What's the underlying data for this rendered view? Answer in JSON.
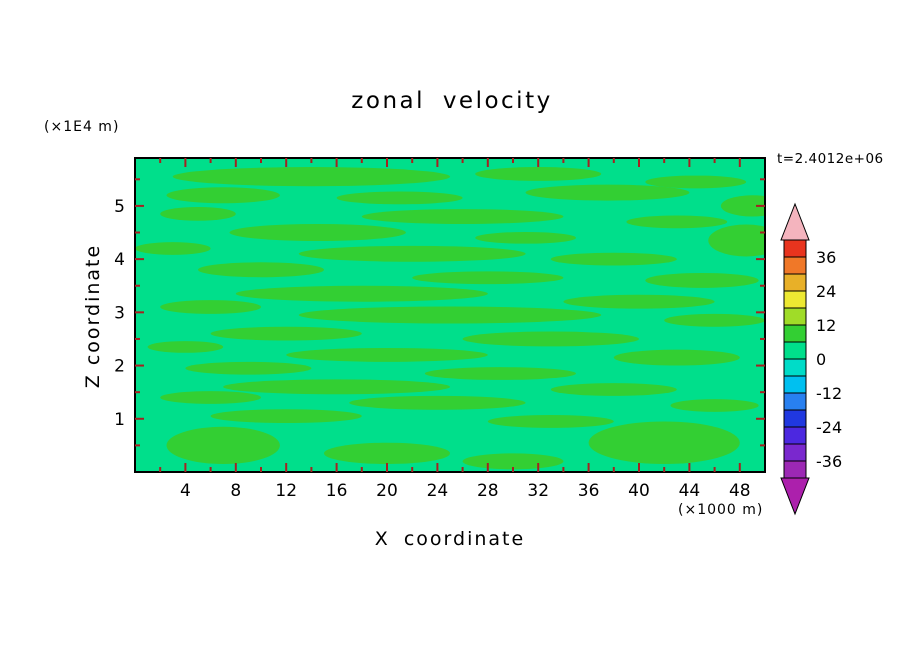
{
  "title": "zonal velocity",
  "annotations": {
    "time": "t=2.4012e+06",
    "y_axis_units": "(×1E4 m)",
    "x_axis_units": "(×1000 m)"
  },
  "chart_data": {
    "type": "filled_contour",
    "title": "zonal velocity",
    "xlabel": "X coordinate",
    "ylabel": "Z coordinate",
    "x_units": "(×1000 m)",
    "y_units": "(×1E4 m)",
    "time_annotation": "t=2.4012e+06",
    "xlim": [
      0,
      50
    ],
    "ylim": [
      0,
      5.9
    ],
    "x_major_ticks": [
      4,
      8,
      12,
      16,
      20,
      24,
      28,
      32,
      36,
      40,
      44,
      48
    ],
    "x_minor_step": 2,
    "y_major_ticks": [
      1,
      2,
      3,
      4,
      5
    ],
    "y_minor_step": 0.5,
    "contour_interval": 6,
    "grid": false,
    "frame_color": "#000000",
    "tick_color": "#a62121",
    "colorbar": {
      "position": "right",
      "labels": [
        "36",
        "24",
        "12",
        "0",
        "-12",
        "-24",
        "-36"
      ],
      "bands_top_to_bottom": [
        {
          "range": [
            36,
            42
          ],
          "color": "#e8341e"
        },
        {
          "range": [
            30,
            36
          ],
          "color": "#f07828"
        },
        {
          "range": [
            24,
            30
          ],
          "color": "#e8b028"
        },
        {
          "range": [
            18,
            24
          ],
          "color": "#ede832"
        },
        {
          "range": [
            12,
            18
          ],
          "color": "#a0dc28"
        },
        {
          "range": [
            6,
            12
          ],
          "color": "#33cf33"
        },
        {
          "range": [
            0,
            6
          ],
          "color": "#00df8b"
        },
        {
          "range": [
            -6,
            0
          ],
          "color": "#00dcc8"
        },
        {
          "range": [
            -12,
            -6
          ],
          "color": "#00c0f0"
        },
        {
          "range": [
            -18,
            -12
          ],
          "color": "#2880f0"
        },
        {
          "range": [
            -24,
            -18
          ],
          "color": "#2038e0"
        },
        {
          "range": [
            -30,
            -24
          ],
          "color": "#4c28e0"
        },
        {
          "range": [
            -36,
            -30
          ],
          "color": "#7a28ce"
        },
        {
          "range": [
            -42,
            -36
          ],
          "color": "#9c28b4"
        }
      ],
      "over_arrow_color": "#f4b4be",
      "under_arrow_color": "#ac20ac"
    },
    "field": {
      "description": "Velocity field dominated by values in band 0..6 (spring green) with elongated horizontal patches in band 6..12 (green).",
      "background_value_band": [
        0,
        6
      ],
      "background_color": "#00df8b",
      "blob_value_band": [
        6,
        12
      ],
      "blob_color": "#33cf33",
      "blobs": [
        [
          14,
          5.55,
          11,
          0.18
        ],
        [
          32,
          5.6,
          5,
          0.13
        ],
        [
          44.5,
          5.45,
          4,
          0.12
        ],
        [
          7,
          5.2,
          4.5,
          0.15
        ],
        [
          21,
          5.15,
          5,
          0.12
        ],
        [
          37.5,
          5.25,
          6.5,
          0.15
        ],
        [
          49,
          5.0,
          2.5,
          0.2
        ],
        [
          5,
          4.85,
          3,
          0.13
        ],
        [
          26,
          4.8,
          8,
          0.14
        ],
        [
          43,
          4.7,
          4,
          0.12
        ],
        [
          14.5,
          4.5,
          7,
          0.16
        ],
        [
          31,
          4.4,
          4,
          0.11
        ],
        [
          48.5,
          4.35,
          3,
          0.3
        ],
        [
          3,
          4.2,
          3,
          0.12
        ],
        [
          22,
          4.1,
          9,
          0.15
        ],
        [
          38,
          4.0,
          5,
          0.12
        ],
        [
          10,
          3.8,
          5,
          0.14
        ],
        [
          28,
          3.65,
          6,
          0.12
        ],
        [
          45,
          3.6,
          4.5,
          0.14
        ],
        [
          18,
          3.35,
          10,
          0.15
        ],
        [
          40,
          3.2,
          6,
          0.13
        ],
        [
          6,
          3.1,
          4,
          0.13
        ],
        [
          25,
          2.95,
          12,
          0.16
        ],
        [
          46,
          2.85,
          4,
          0.12
        ],
        [
          12,
          2.6,
          6,
          0.13
        ],
        [
          33,
          2.5,
          7,
          0.14
        ],
        [
          4,
          2.35,
          3,
          0.11
        ],
        [
          20,
          2.2,
          8,
          0.13
        ],
        [
          43,
          2.15,
          5,
          0.15
        ],
        [
          9,
          1.95,
          5,
          0.12
        ],
        [
          29,
          1.85,
          6,
          0.12
        ],
        [
          16,
          1.6,
          9,
          0.14
        ],
        [
          38,
          1.55,
          5,
          0.12
        ],
        [
          6,
          1.4,
          4,
          0.12
        ],
        [
          24,
          1.3,
          7,
          0.13
        ],
        [
          46,
          1.25,
          3.5,
          0.12
        ],
        [
          12,
          1.05,
          6,
          0.13
        ],
        [
          33,
          0.95,
          5,
          0.12
        ],
        [
          7,
          0.5,
          4.5,
          0.35
        ],
        [
          42,
          0.55,
          6,
          0.4
        ],
        [
          20,
          0.35,
          5,
          0.2
        ],
        [
          30,
          0.2,
          4,
          0.15
        ]
      ]
    }
  }
}
